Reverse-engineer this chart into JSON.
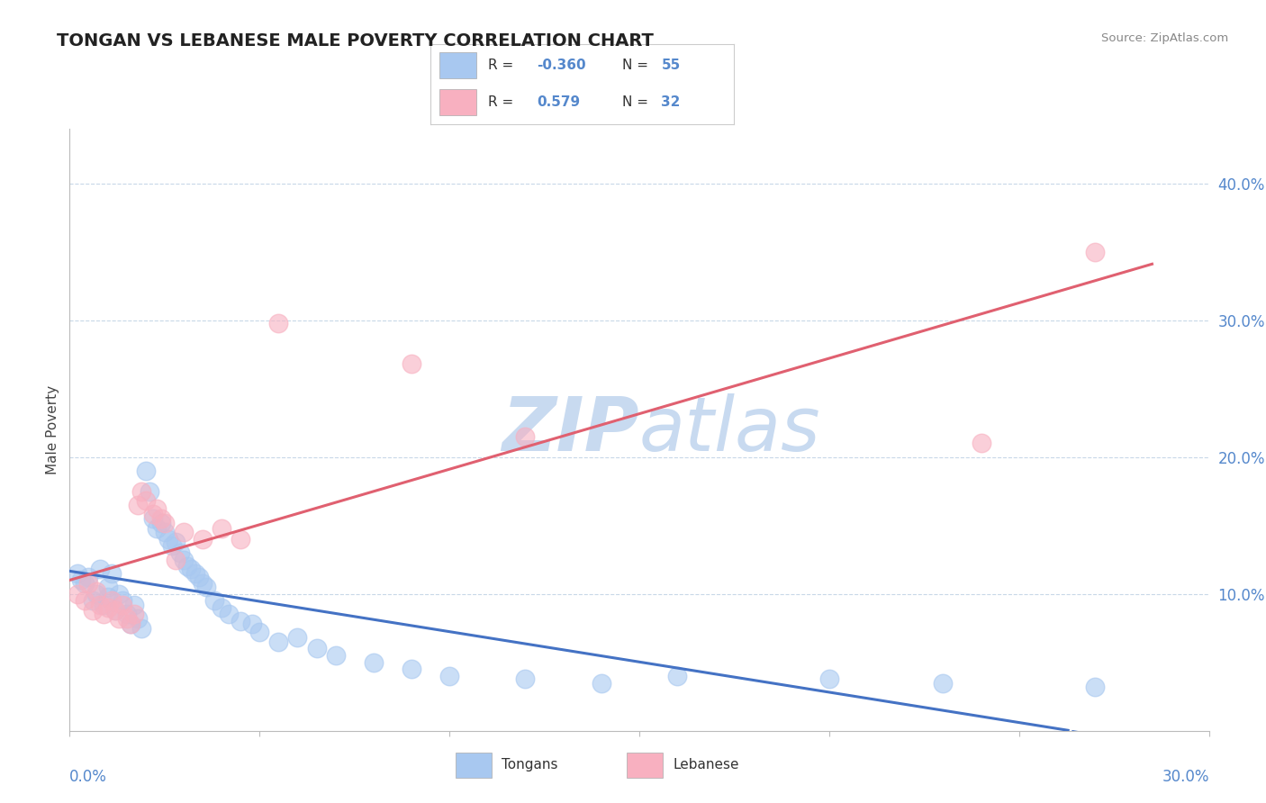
{
  "title": "TONGAN VS LEBANESE MALE POVERTY CORRELATION CHART",
  "source": "Source: ZipAtlas.com",
  "ylabel": "Male Poverty",
  "x_range": [
    0.0,
    0.3
  ],
  "y_range": [
    0.0,
    0.44
  ],
  "tongan_R": "-0.360",
  "tongan_N": "55",
  "lebanese_R": "0.579",
  "lebanese_N": "32",
  "tongan_color": "#a8c8f0",
  "lebanese_color": "#f8b0c0",
  "regression_tongan_color": "#4472c4",
  "regression_lebanese_color": "#e06070",
  "background_color": "#ffffff",
  "grid_color": "#c8d8e8",
  "watermark_color": "#c8daf0",
  "title_color": "#222222",
  "axis_label_color": "#5588cc",
  "yticks": [
    0.1,
    0.2,
    0.3,
    0.4
  ],
  "ytick_labels": [
    "10.0%",
    "20.0%",
    "30.0%",
    "40.0%"
  ],
  "tongan_scatter": [
    [
      0.002,
      0.115
    ],
    [
      0.003,
      0.11
    ],
    [
      0.004,
      0.108
    ],
    [
      0.005,
      0.112
    ],
    [
      0.006,
      0.095
    ],
    [
      0.007,
      0.1
    ],
    [
      0.008,
      0.118
    ],
    [
      0.009,
      0.092
    ],
    [
      0.01,
      0.105
    ],
    [
      0.01,
      0.098
    ],
    [
      0.011,
      0.115
    ],
    [
      0.012,
      0.088
    ],
    [
      0.013,
      0.1
    ],
    [
      0.014,
      0.095
    ],
    [
      0.015,
      0.085
    ],
    [
      0.016,
      0.078
    ],
    [
      0.017,
      0.092
    ],
    [
      0.018,
      0.082
    ],
    [
      0.019,
      0.075
    ],
    [
      0.02,
      0.19
    ],
    [
      0.021,
      0.175
    ],
    [
      0.022,
      0.155
    ],
    [
      0.023,
      0.148
    ],
    [
      0.024,
      0.152
    ],
    [
      0.025,
      0.145
    ],
    [
      0.026,
      0.14
    ],
    [
      0.027,
      0.135
    ],
    [
      0.028,
      0.138
    ],
    [
      0.029,
      0.13
    ],
    [
      0.03,
      0.125
    ],
    [
      0.031,
      0.12
    ],
    [
      0.032,
      0.118
    ],
    [
      0.033,
      0.115
    ],
    [
      0.034,
      0.112
    ],
    [
      0.035,
      0.108
    ],
    [
      0.036,
      0.105
    ],
    [
      0.038,
      0.095
    ],
    [
      0.04,
      0.09
    ],
    [
      0.042,
      0.085
    ],
    [
      0.045,
      0.08
    ],
    [
      0.048,
      0.078
    ],
    [
      0.05,
      0.072
    ],
    [
      0.055,
      0.065
    ],
    [
      0.06,
      0.068
    ],
    [
      0.065,
      0.06
    ],
    [
      0.07,
      0.055
    ],
    [
      0.08,
      0.05
    ],
    [
      0.09,
      0.045
    ],
    [
      0.1,
      0.04
    ],
    [
      0.12,
      0.038
    ],
    [
      0.14,
      0.035
    ],
    [
      0.16,
      0.04
    ],
    [
      0.2,
      0.038
    ],
    [
      0.23,
      0.035
    ],
    [
      0.27,
      0.032
    ]
  ],
  "lebanese_scatter": [
    [
      0.002,
      0.1
    ],
    [
      0.004,
      0.095
    ],
    [
      0.005,
      0.108
    ],
    [
      0.006,
      0.088
    ],
    [
      0.007,
      0.102
    ],
    [
      0.008,
      0.092
    ],
    [
      0.009,
      0.085
    ],
    [
      0.01,
      0.09
    ],
    [
      0.011,
      0.095
    ],
    [
      0.012,
      0.088
    ],
    [
      0.013,
      0.082
    ],
    [
      0.014,
      0.092
    ],
    [
      0.015,
      0.082
    ],
    [
      0.016,
      0.078
    ],
    [
      0.017,
      0.085
    ],
    [
      0.018,
      0.165
    ],
    [
      0.019,
      0.175
    ],
    [
      0.02,
      0.168
    ],
    [
      0.022,
      0.158
    ],
    [
      0.023,
      0.162
    ],
    [
      0.024,
      0.155
    ],
    [
      0.025,
      0.152
    ],
    [
      0.028,
      0.125
    ],
    [
      0.03,
      0.145
    ],
    [
      0.035,
      0.14
    ],
    [
      0.04,
      0.148
    ],
    [
      0.045,
      0.14
    ],
    [
      0.055,
      0.298
    ],
    [
      0.09,
      0.268
    ],
    [
      0.12,
      0.215
    ],
    [
      0.24,
      0.21
    ],
    [
      0.27,
      0.35
    ]
  ]
}
